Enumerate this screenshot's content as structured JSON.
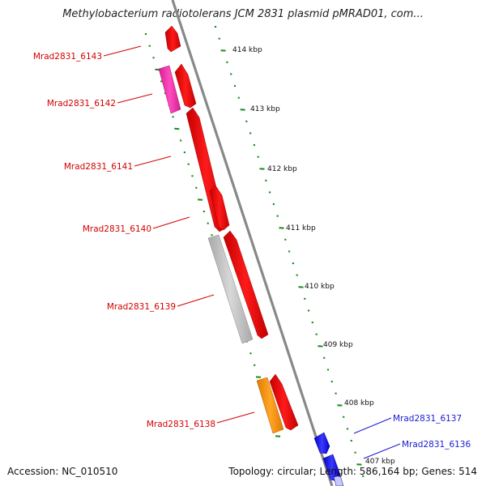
{
  "title": "Methylobacterium radiotolerans JCM 2831 plasmid pMRAD01, com...",
  "footer": {
    "accession": "Accession: NC_010510",
    "summary": "Topology: circular; Length: 586,164 bp; Genes: 514"
  },
  "colors": {
    "backbone": "#888888",
    "tick": "#1a8a1a",
    "label_forward": "#d40000",
    "label_reverse": "#1a1ad4",
    "gene_red": "#ff1a1a",
    "gene_pink": "#ff3ab4",
    "gene_gray": "#c0c0c0",
    "gene_orange": "#ff9400",
    "gene_blue": "#1a1aff"
  },
  "scale_labels": [
    "414 kbp",
    "413 kbp",
    "412 kbp",
    "411 kbp",
    "410 kbp",
    "409 kbp",
    "408 kbp",
    "407 kbp"
  ],
  "gene_labels": {
    "forward": [
      "Mrad2831_6143",
      "Mrad2831_6142",
      "Mrad2831_6141",
      "Mrad2831_6140",
      "Mrad2831_6139",
      "Mrad2831_6138"
    ],
    "reverse": [
      "Mrad2831_6137",
      "Mrad2831_6136"
    ]
  }
}
